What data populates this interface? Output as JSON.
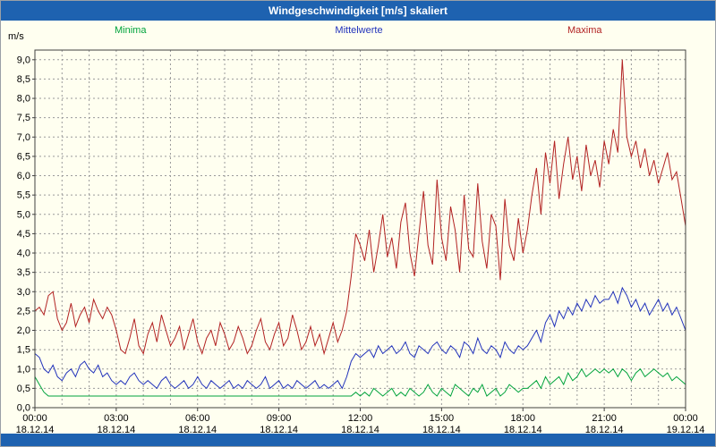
{
  "window": {
    "title": "Windgeschwindigkeit [m/s] skaliert"
  },
  "colors": {
    "title_bar": "#1e62b0",
    "panel_bg": "#fffff0",
    "axis_text": "#000000"
  },
  "chart_data": {
    "type": "line",
    "title": "Windgeschwindigkeit [m/s] skaliert",
    "ylabel": "m/s",
    "xlabel": "",
    "ylim": [
      0,
      9.25
    ],
    "y_tick_step": 0.5,
    "y_tick_format": "comma-decimal",
    "x_range_hours": [
      0,
      24
    ],
    "x_minor_grid_hours": 1,
    "grid": true,
    "plot_bg": "#fffff0",
    "grid_color": "#9a9a9a",
    "border_color": "#404040",
    "x_ticks": [
      {
        "time": "00:00",
        "date": "18.12.14"
      },
      {
        "time": "03:00",
        "date": "18.12.14"
      },
      {
        "time": "06:00",
        "date": "18.12.14"
      },
      {
        "time": "09:00",
        "date": "18.12.14"
      },
      {
        "time": "12:00",
        "date": "18.12.14"
      },
      {
        "time": "15:00",
        "date": "18.12.14"
      },
      {
        "time": "18:00",
        "date": "18.12.14"
      },
      {
        "time": "21:00",
        "date": "18.12.14"
      },
      {
        "time": "00:00",
        "date": "19.12.14"
      }
    ],
    "legend": [
      {
        "label": "Minima",
        "color": "#00a33c"
      },
      {
        "label": "Mittelwerte",
        "color": "#2233bb"
      },
      {
        "label": "Maxima",
        "color": "#b22222"
      }
    ],
    "series": [
      {
        "name": "Minima",
        "color": "#00a33c",
        "values": [
          0.8,
          0.6,
          0.4,
          0.3,
          0.3,
          0.3,
          0.3,
          0.3,
          0.3,
          0.3,
          0.3,
          0.3,
          0.3,
          0.3,
          0.3,
          0.3,
          0.3,
          0.3,
          0.3,
          0.3,
          0.3,
          0.3,
          0.3,
          0.3,
          0.3,
          0.3,
          0.3,
          0.3,
          0.3,
          0.3,
          0.3,
          0.3,
          0.3,
          0.3,
          0.3,
          0.3,
          0.3,
          0.3,
          0.3,
          0.3,
          0.3,
          0.3,
          0.3,
          0.3,
          0.3,
          0.3,
          0.3,
          0.3,
          0.3,
          0.3,
          0.3,
          0.3,
          0.3,
          0.3,
          0.3,
          0.3,
          0.3,
          0.3,
          0.3,
          0.3,
          0.3,
          0.3,
          0.3,
          0.3,
          0.3,
          0.3,
          0.3,
          0.3,
          0.3,
          0.3,
          0.3,
          0.4,
          0.3,
          0.4,
          0.3,
          0.5,
          0.4,
          0.3,
          0.4,
          0.5,
          0.3,
          0.4,
          0.3,
          0.5,
          0.4,
          0.3,
          0.4,
          0.6,
          0.4,
          0.3,
          0.5,
          0.4,
          0.3,
          0.6,
          0.5,
          0.4,
          0.3,
          0.5,
          0.4,
          0.6,
          0.3,
          0.4,
          0.5,
          0.3,
          0.4,
          0.6,
          0.5,
          0.4,
          0.5,
          0.5,
          0.6,
          0.7,
          0.5,
          0.8,
          0.6,
          0.7,
          0.8,
          0.6,
          0.9,
          0.7,
          0.8,
          1.0,
          0.8,
          0.9,
          1.0,
          0.9,
          1.0,
          0.9,
          1.0,
          0.8,
          1.0,
          0.9,
          0.7,
          0.9,
          1.0,
          0.8,
          0.9,
          1.0,
          0.9,
          0.8,
          0.9,
          0.7,
          0.8,
          0.7,
          0.6
        ]
      },
      {
        "name": "Mittelwerte",
        "color": "#2233bb",
        "values": [
          1.4,
          1.3,
          1.0,
          0.9,
          1.1,
          0.8,
          0.7,
          0.9,
          1.0,
          0.8,
          1.1,
          1.2,
          1.0,
          0.9,
          1.1,
          0.8,
          0.9,
          0.7,
          0.6,
          0.7,
          0.6,
          0.8,
          0.9,
          0.7,
          0.6,
          0.7,
          0.6,
          0.5,
          0.7,
          0.8,
          0.6,
          0.5,
          0.6,
          0.7,
          0.5,
          0.6,
          0.8,
          0.6,
          0.5,
          0.7,
          0.6,
          0.5,
          0.6,
          0.7,
          0.5,
          0.6,
          0.5,
          0.7,
          0.6,
          0.5,
          0.6,
          0.8,
          0.5,
          0.6,
          0.7,
          0.5,
          0.6,
          0.5,
          0.7,
          0.6,
          0.5,
          0.6,
          0.7,
          0.5,
          0.6,
          0.5,
          0.6,
          0.7,
          0.5,
          0.8,
          1.2,
          1.4,
          1.3,
          1.4,
          1.5,
          1.3,
          1.6,
          1.4,
          1.5,
          1.6,
          1.4,
          1.5,
          1.7,
          1.4,
          1.3,
          1.6,
          1.5,
          1.4,
          1.6,
          1.7,
          1.5,
          1.4,
          1.6,
          1.5,
          1.3,
          1.7,
          1.6,
          1.4,
          1.8,
          1.5,
          1.4,
          1.6,
          1.5,
          1.3,
          1.7,
          1.5,
          1.4,
          1.6,
          1.5,
          1.6,
          1.8,
          2.0,
          1.7,
          2.2,
          2.4,
          2.1,
          2.5,
          2.3,
          2.6,
          2.4,
          2.7,
          2.5,
          2.8,
          2.6,
          2.9,
          2.7,
          2.8,
          2.8,
          3.0,
          2.7,
          3.1,
          2.9,
          2.6,
          2.8,
          2.5,
          2.7,
          2.4,
          2.6,
          2.8,
          2.5,
          2.7,
          2.4,
          2.6,
          2.3,
          2.0
        ]
      },
      {
        "name": "Maxima",
        "color": "#b22222",
        "values": [
          2.5,
          2.6,
          2.4,
          2.9,
          3.0,
          2.3,
          2.0,
          2.2,
          2.7,
          2.1,
          2.4,
          2.6,
          2.2,
          2.8,
          2.5,
          2.3,
          2.6,
          2.4,
          2.0,
          1.5,
          1.4,
          1.8,
          2.3,
          1.6,
          1.4,
          1.9,
          2.2,
          1.7,
          2.4,
          2.0,
          1.6,
          1.8,
          2.1,
          1.5,
          1.9,
          2.3,
          1.7,
          1.4,
          1.8,
          2.0,
          1.6,
          2.2,
          1.9,
          1.5,
          1.7,
          2.1,
          1.8,
          1.4,
          1.6,
          2.0,
          2.3,
          1.7,
          1.5,
          1.9,
          2.2,
          1.6,
          1.8,
          2.4,
          2.0,
          1.5,
          1.7,
          2.1,
          1.6,
          1.9,
          1.4,
          1.8,
          2.2,
          1.7,
          2.0,
          2.5,
          3.4,
          4.5,
          4.2,
          3.8,
          4.6,
          3.5,
          4.2,
          5.0,
          3.9,
          4.4,
          3.6,
          4.8,
          5.3,
          4.0,
          3.4,
          4.5,
          5.6,
          4.2,
          3.7,
          5.9,
          4.4,
          3.8,
          5.2,
          4.6,
          3.5,
          5.5,
          4.1,
          3.9,
          5.8,
          4.3,
          3.6,
          5.0,
          4.7,
          3.3,
          5.4,
          4.2,
          3.8,
          4.9,
          4.0,
          4.6,
          5.5,
          6.2,
          5.0,
          6.6,
          5.8,
          6.9,
          5.4,
          6.3,
          7.0,
          5.9,
          6.5,
          5.6,
          6.8,
          6.0,
          6.4,
          5.7,
          6.9,
          6.3,
          7.2,
          6.6,
          9.0,
          7.0,
          6.5,
          6.9,
          6.2,
          6.7,
          6.0,
          6.4,
          5.8,
          6.2,
          6.6,
          5.9,
          6.1,
          5.4,
          4.7
        ]
      }
    ]
  }
}
